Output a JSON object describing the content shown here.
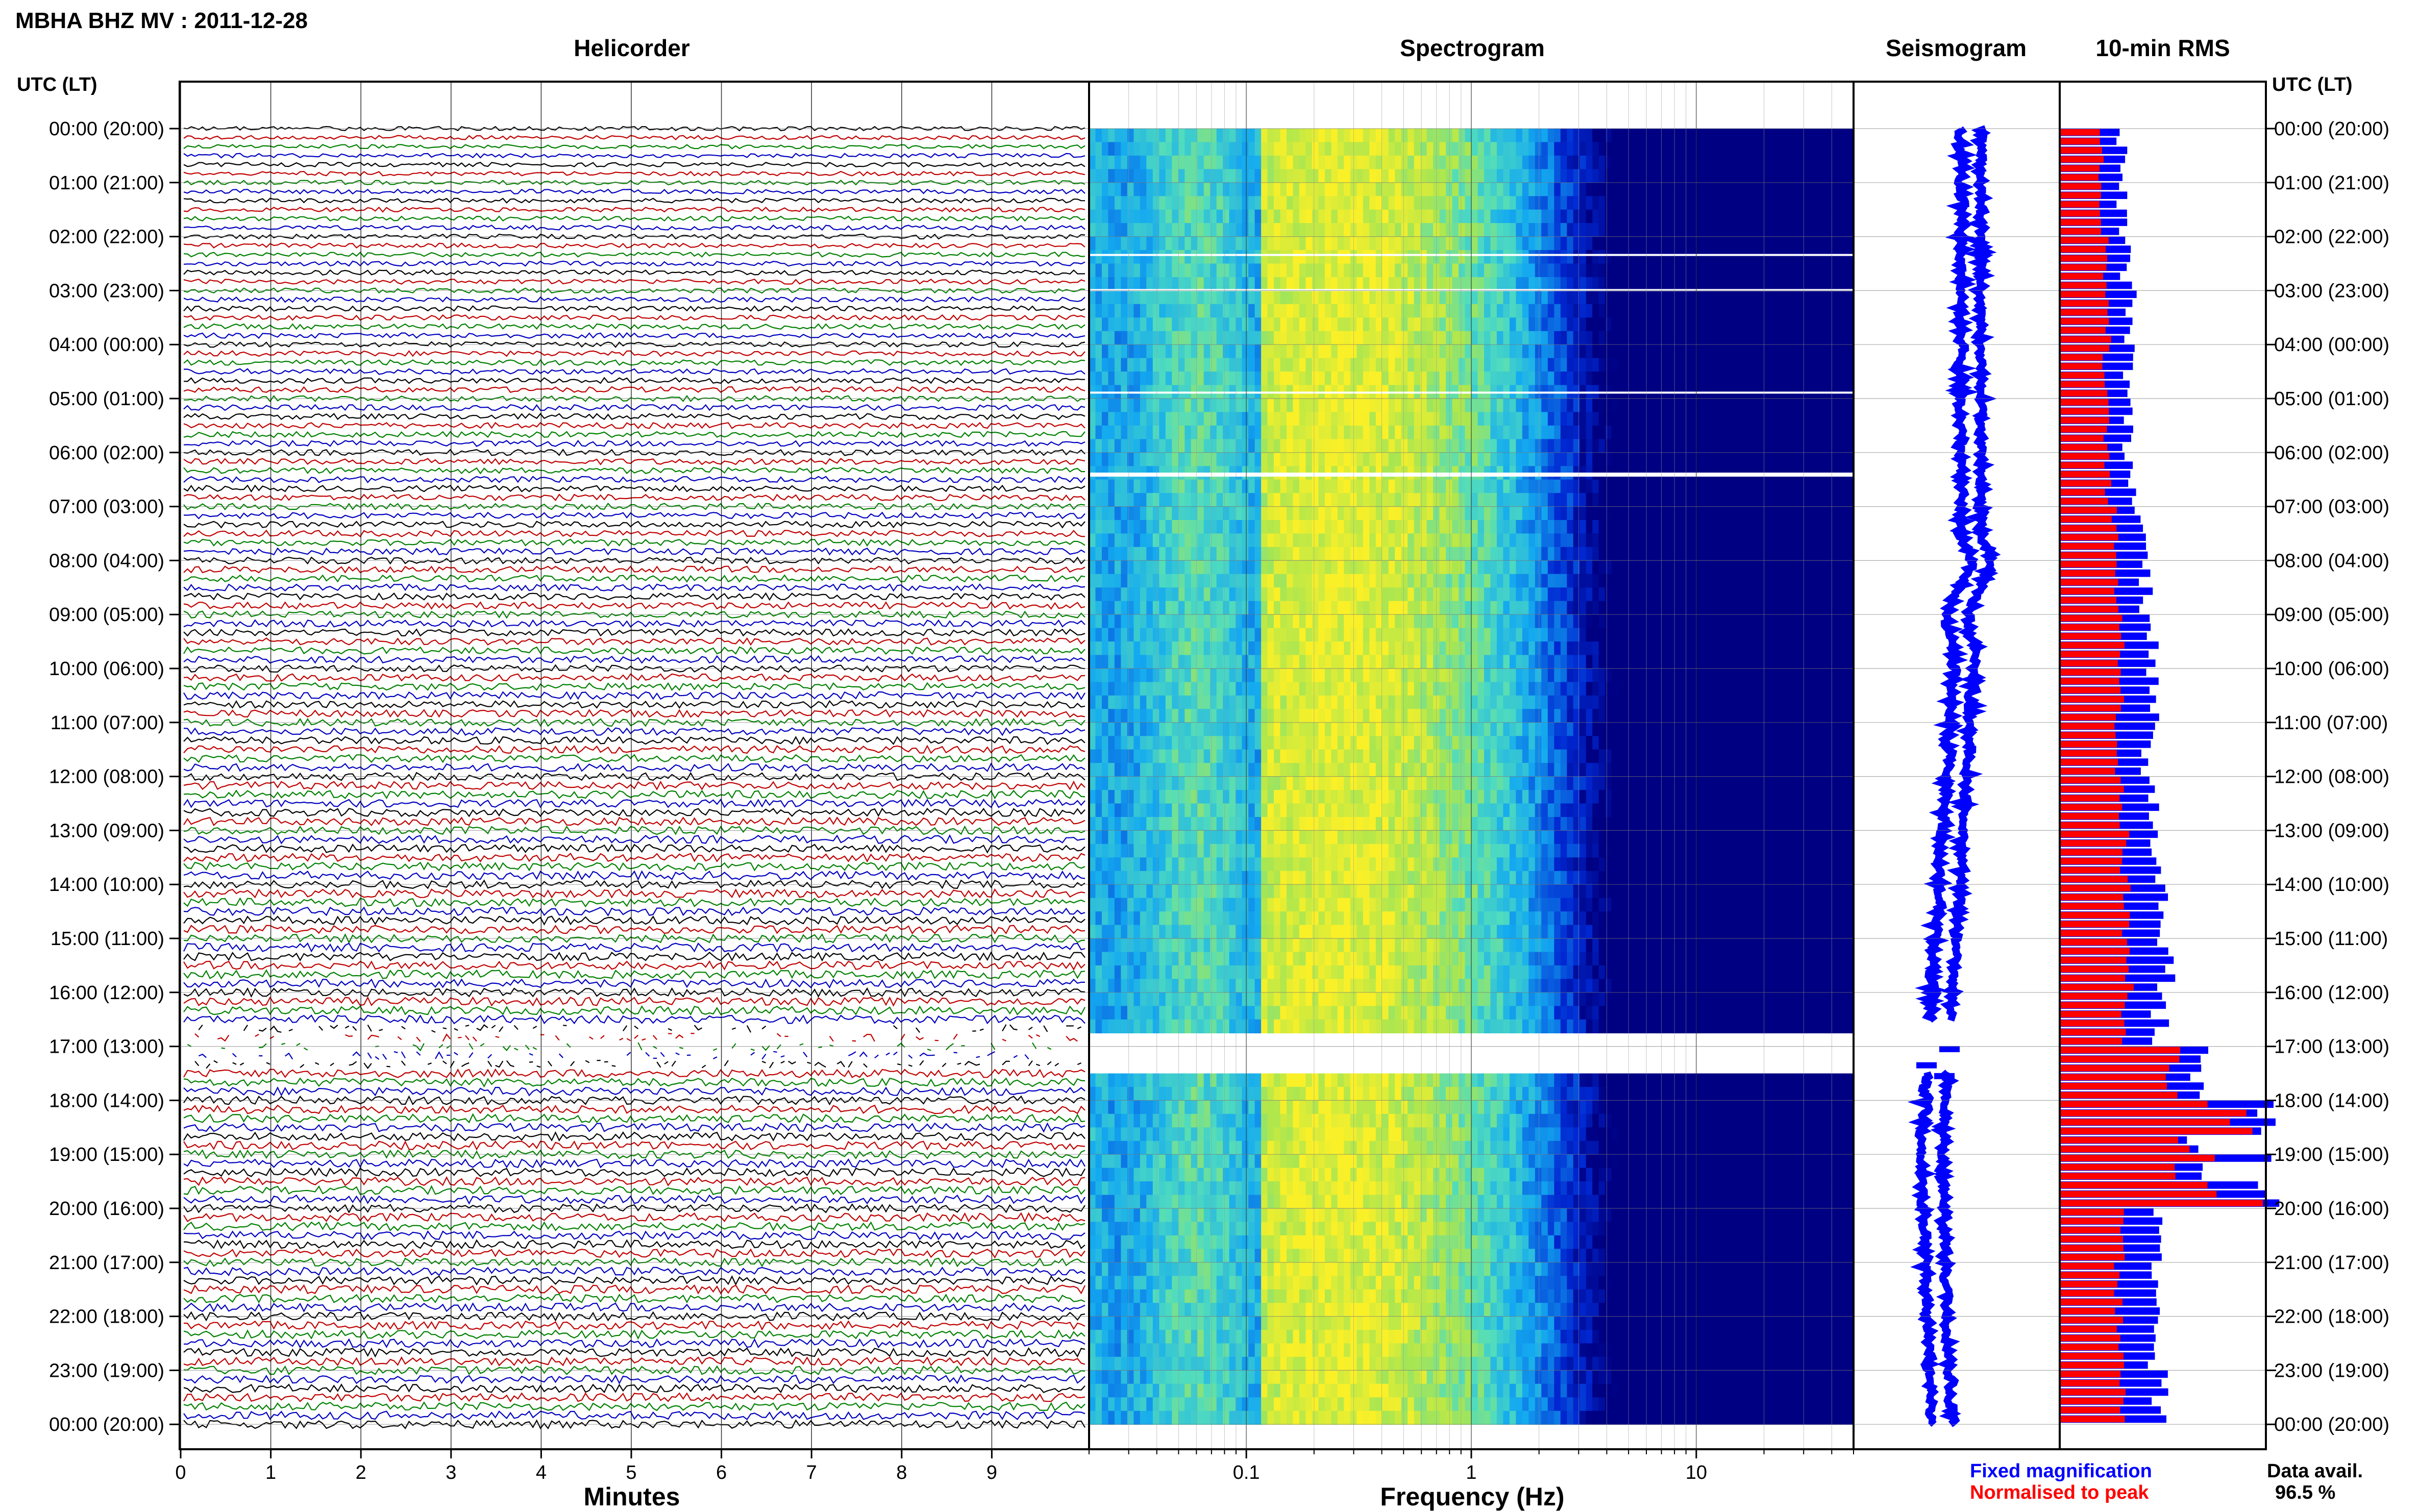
{
  "title": "MBHA BHZ MV : 2011-12-28",
  "time_axis_label": "UTC (LT)",
  "time_labels": [
    "00:00 (20:00)",
    "01:00 (21:00)",
    "02:00 (22:00)",
    "03:00 (23:00)",
    "04:00 (00:00)",
    "05:00 (01:00)",
    "06:00 (02:00)",
    "07:00 (03:00)",
    "08:00 (04:00)",
    "09:00 (05:00)",
    "10:00 (06:00)",
    "11:00 (07:00)",
    "12:00 (08:00)",
    "13:00 (09:00)",
    "14:00 (10:00)",
    "15:00 (11:00)",
    "16:00 (12:00)",
    "17:00 (13:00)",
    "18:00 (14:00)",
    "19:00 (15:00)",
    "20:00 (16:00)",
    "21:00 (17:00)",
    "22:00 (18:00)",
    "23:00 (19:00)",
    "00:00 (20:00)"
  ],
  "panels": {
    "helicorder": {
      "title": "Helicorder",
      "xlabel": "Minutes",
      "xticks": [
        "0",
        "1",
        "2",
        "3",
        "4",
        "5",
        "6",
        "7",
        "8",
        "9"
      ],
      "trace_colors": [
        "#000000",
        "#c00000",
        "#008000",
        "#0000c0"
      ]
    },
    "spectrogram": {
      "title": "Spectrogram",
      "xlabel": "Frequency (Hz)",
      "xticks": [
        "0.1",
        "1",
        "10"
      ]
    },
    "seismogram": {
      "title": "Seismogram",
      "color": "#0000ff"
    },
    "rms": {
      "title": "10-min RMS",
      "fixed_color": "#0000ff",
      "normalised_color": "#ff0000"
    }
  },
  "legend": {
    "fixed": "Fixed magnification",
    "normalised": "Normalised to peak"
  },
  "availability": {
    "label": "Data avail.",
    "value": "96.5 %"
  },
  "chart_data": {
    "type": "heatmap",
    "title": "MBHA BHZ MV : 2011-12-28",
    "xlabel": "Frequency (Hz)",
    "ylabel": "UTC (LT)",
    "x_scale": "log",
    "xlim": [
      0.02,
      50
    ],
    "ylim_hours": [
      0,
      24
    ],
    "data_gap_hours": [
      [
        16.55,
        17.45
      ]
    ],
    "spectral_peak_hz": 0.25,
    "rms_hourly": {
      "hours": [
        0,
        1,
        2,
        3,
        4,
        5,
        6,
        7,
        8,
        9,
        10,
        11,
        12,
        13,
        14,
        15,
        16,
        17,
        18,
        19,
        20,
        21,
        22,
        23
      ],
      "fixed": [
        0.3,
        0.3,
        0.32,
        0.34,
        0.33,
        0.33,
        0.34,
        0.4,
        0.42,
        0.46,
        0.44,
        0.42,
        0.46,
        0.48,
        0.5,
        0.52,
        0.48,
        0.7,
        0.65,
        0.72,
        0.46,
        0.44,
        0.46,
        0.48
      ],
      "normalised": [
        0.2,
        0.2,
        0.22,
        0.23,
        0.22,
        0.22,
        0.23,
        0.26,
        0.28,
        0.3,
        0.29,
        0.28,
        0.3,
        0.31,
        0.32,
        0.34,
        0.31,
        0.55,
        0.6,
        0.58,
        0.3,
        0.28,
        0.29,
        0.31
      ]
    }
  }
}
